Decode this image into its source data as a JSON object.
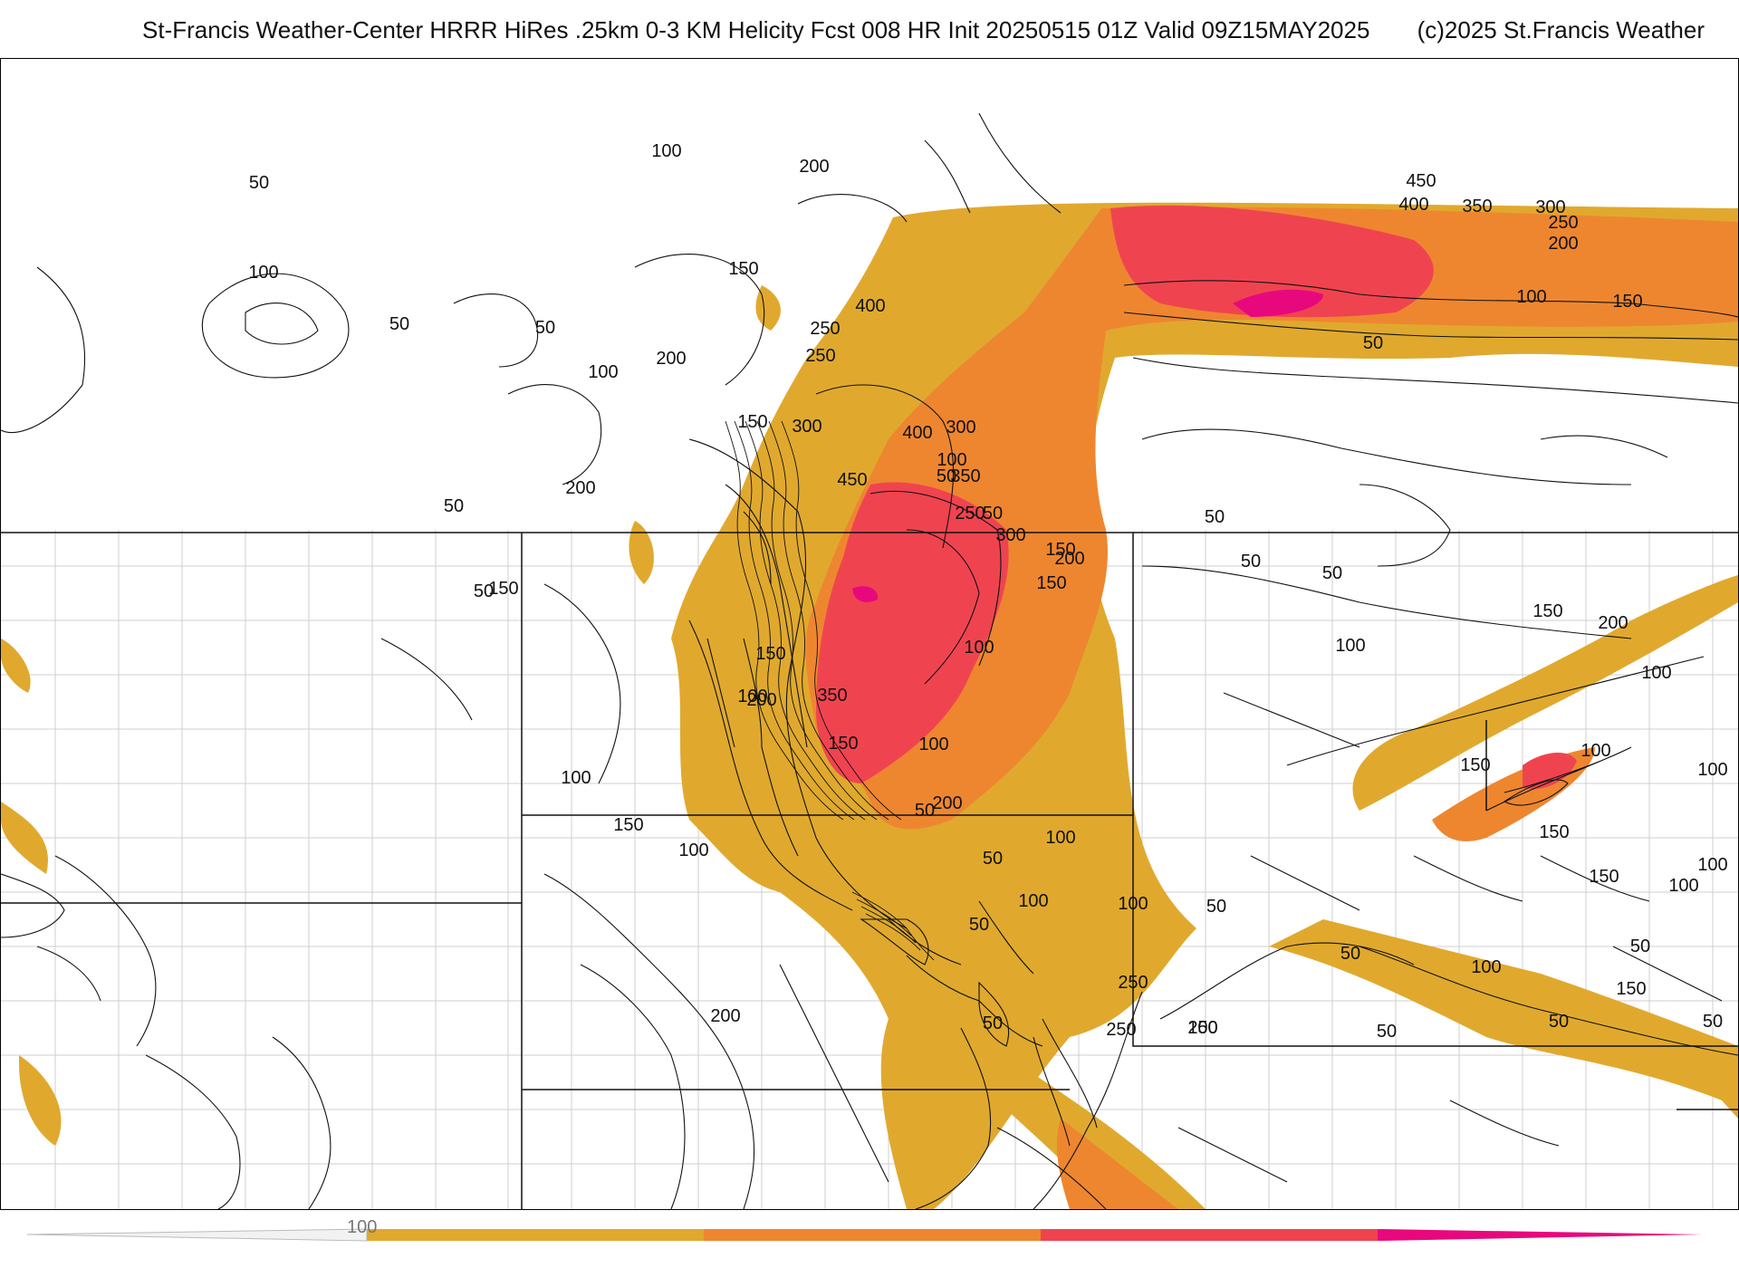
{
  "header": {
    "title": "St-Francis Weather-Center HRRR HiRes .25km 0-3 KM Helicity Fcst 008 HR Init 20250515 01Z  Valid 09Z15MAY2025",
    "copyright": "(c)2025 St.Francis Weather"
  },
  "colors": {
    "shade_100_200": "#e0a92e",
    "shade_200_300": "#ee8630",
    "shade_300_400": "#ef4450",
    "shade_400_plus": "#e8087e",
    "contour": "#111111",
    "boundary": "#222222",
    "county": "#c9c9c9"
  },
  "colorbar": {
    "tick_label": "100",
    "segments": [
      "#e0a92e",
      "#ee8630",
      "#ef4450",
      "#e8087e"
    ]
  },
  "map": {
    "contour_labels": [
      "100",
      "200",
      "50",
      "100",
      "50",
      "150",
      "50",
      "200",
      "100",
      "250",
      "400",
      "250",
      "150",
      "300",
      "200",
      "400",
      "300",
      "450",
      "350",
      "100",
      "50",
      "250",
      "300",
      "50",
      "150",
      "50",
      "150",
      "200",
      "100",
      "350",
      "200",
      "150",
      "100",
      "150",
      "50",
      "100",
      "150",
      "100",
      "200",
      "50",
      "100",
      "50",
      "150",
      "100",
      "200",
      "100",
      "50",
      "250",
      "250",
      "200",
      "150",
      "450",
      "400",
      "350",
      "300",
      "250",
      "200",
      "100",
      "150",
      "50",
      "50",
      "50",
      "100",
      "150",
      "200",
      "100",
      "150",
      "100",
      "100",
      "150",
      "100",
      "150",
      "100",
      "150",
      "100",
      "50",
      "50",
      "50",
      "50",
      "50",
      "50",
      "50",
      "100",
      "50"
    ]
  }
}
